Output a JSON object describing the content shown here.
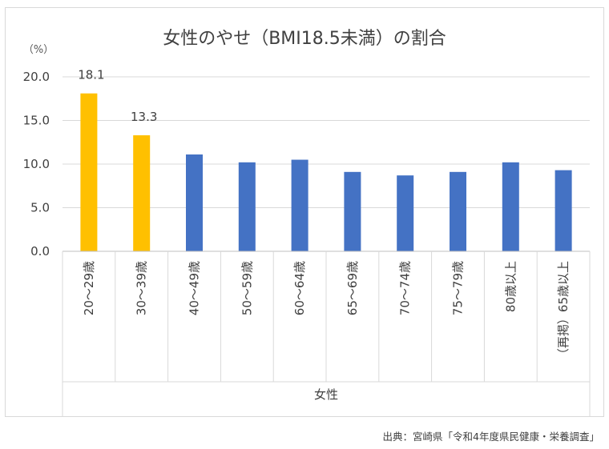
{
  "chart_data": {
    "type": "bar",
    "title": "女性のやせ（BMI18.5未満）の割合",
    "ylabel": "（%）",
    "xlabel": "女性",
    "ylim": [
      0,
      20
    ],
    "yticks": [
      "0.0",
      "5.0",
      "10.0",
      "15.0",
      "20.0"
    ],
    "grid": true,
    "categories": [
      "20～29歳",
      "30～39歳",
      "40～49歳",
      "50～59歳",
      "60～64歳",
      "65～69歳",
      "70～74歳",
      "75～79歳",
      "80歳以上",
      "（再掲）65歳以上"
    ],
    "values": [
      18.1,
      13.3,
      11.1,
      10.2,
      10.5,
      9.1,
      8.7,
      9.1,
      10.2,
      9.3
    ],
    "data_labels": [
      "18.1",
      "13.3",
      "",
      "",
      "",
      "",
      "",
      "",
      "",
      ""
    ],
    "colors": [
      "#ffc000",
      "#ffc000",
      "#4472c4",
      "#4472c4",
      "#4472c4",
      "#4472c4",
      "#4472c4",
      "#4472c4",
      "#4472c4",
      "#4472c4"
    ]
  },
  "source": "出典：宮崎県「令和4年度県民健康・栄養調査」"
}
